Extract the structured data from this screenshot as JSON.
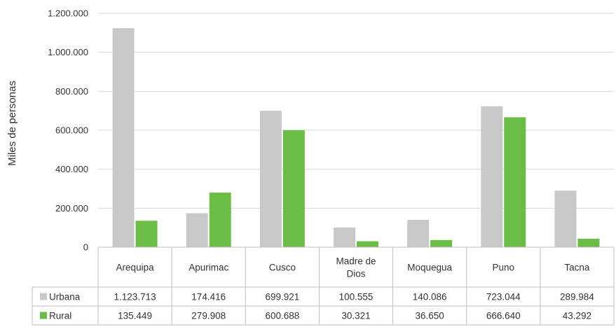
{
  "chart_data": {
    "type": "bar",
    "title": "",
    "xlabel": "",
    "ylabel": "Miles de personas",
    "categories": [
      [
        "Arequipa"
      ],
      [
        "Apurimac"
      ],
      [
        "Cusco"
      ],
      [
        "Madre de",
        "Dios"
      ],
      [
        "Moquegua"
      ],
      [
        "Puno"
      ],
      [
        "Tacna"
      ]
    ],
    "series": [
      {
        "name": "Urbana",
        "color": "#c8c8c8",
        "values": [
          1123713,
          174416,
          699921,
          100555,
          140086,
          723044,
          289984
        ],
        "labels": [
          "1.123.713",
          "174.416",
          "699.921",
          "100.555",
          "140.086",
          "723.044",
          "289.984"
        ]
      },
      {
        "name": "Rural",
        "color": "#6cbd45",
        "values": [
          135449,
          279908,
          600688,
          30321,
          36650,
          666640,
          43292
        ],
        "labels": [
          "135.449",
          "279.908",
          "600.688",
          "30.321",
          "36.650",
          "666.640",
          "43.292"
        ]
      }
    ],
    "ylim": [
      0,
      1200000
    ],
    "yticks": [
      0,
      200000,
      400000,
      600000,
      800000,
      1000000,
      1200000
    ],
    "ytick_labels": [
      "0",
      "200.000",
      "400.000",
      "600.000",
      "800.000",
      "1.000.000",
      "1.200.000"
    ],
    "grid": true,
    "legend": "data-table"
  }
}
